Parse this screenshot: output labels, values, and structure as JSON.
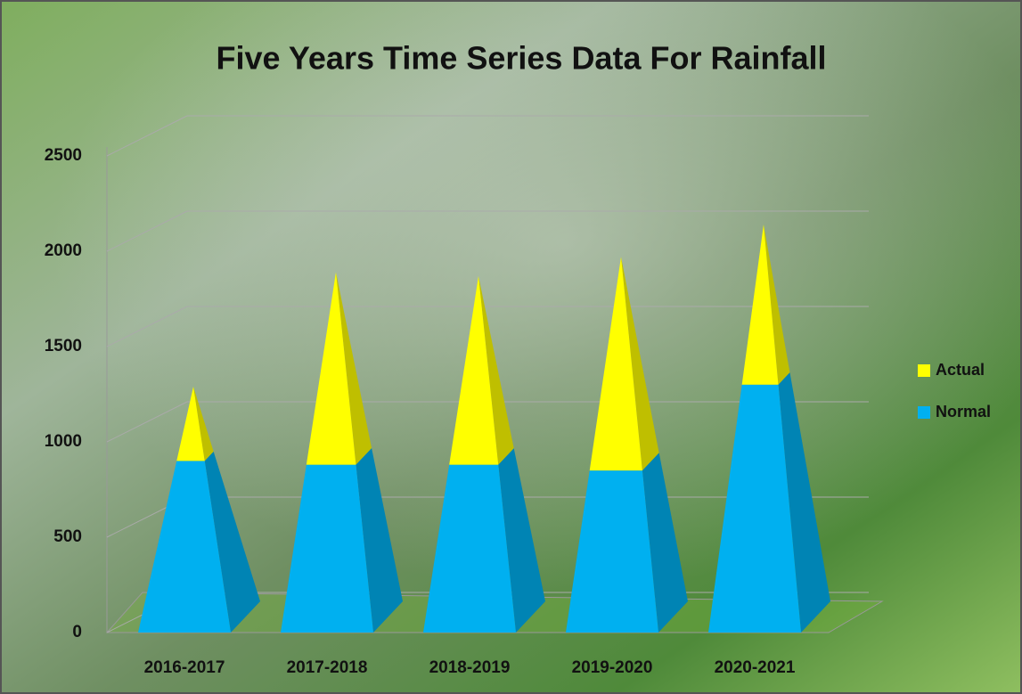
{
  "chart_data": {
    "type": "pyramid-stacked",
    "title": "Five Years Time Series Data For Rainfall",
    "categories": [
      "2016-2017",
      "2017-2018",
      "2018-2019",
      "2019-2020",
      "2020-2021"
    ],
    "series": [
      {
        "name": "Normal",
        "color": "#00b0f0",
        "values": [
          900,
          880,
          880,
          850,
          1300
        ]
      },
      {
        "name": "Actual",
        "color": "#ffff00",
        "values": [
          390,
          1010,
          990,
          1120,
          840
        ]
      }
    ],
    "ylim": [
      0,
      2500
    ],
    "yticks": [
      0,
      500,
      1000,
      1500,
      2000,
      2500
    ],
    "grid": true,
    "legend": "right"
  }
}
